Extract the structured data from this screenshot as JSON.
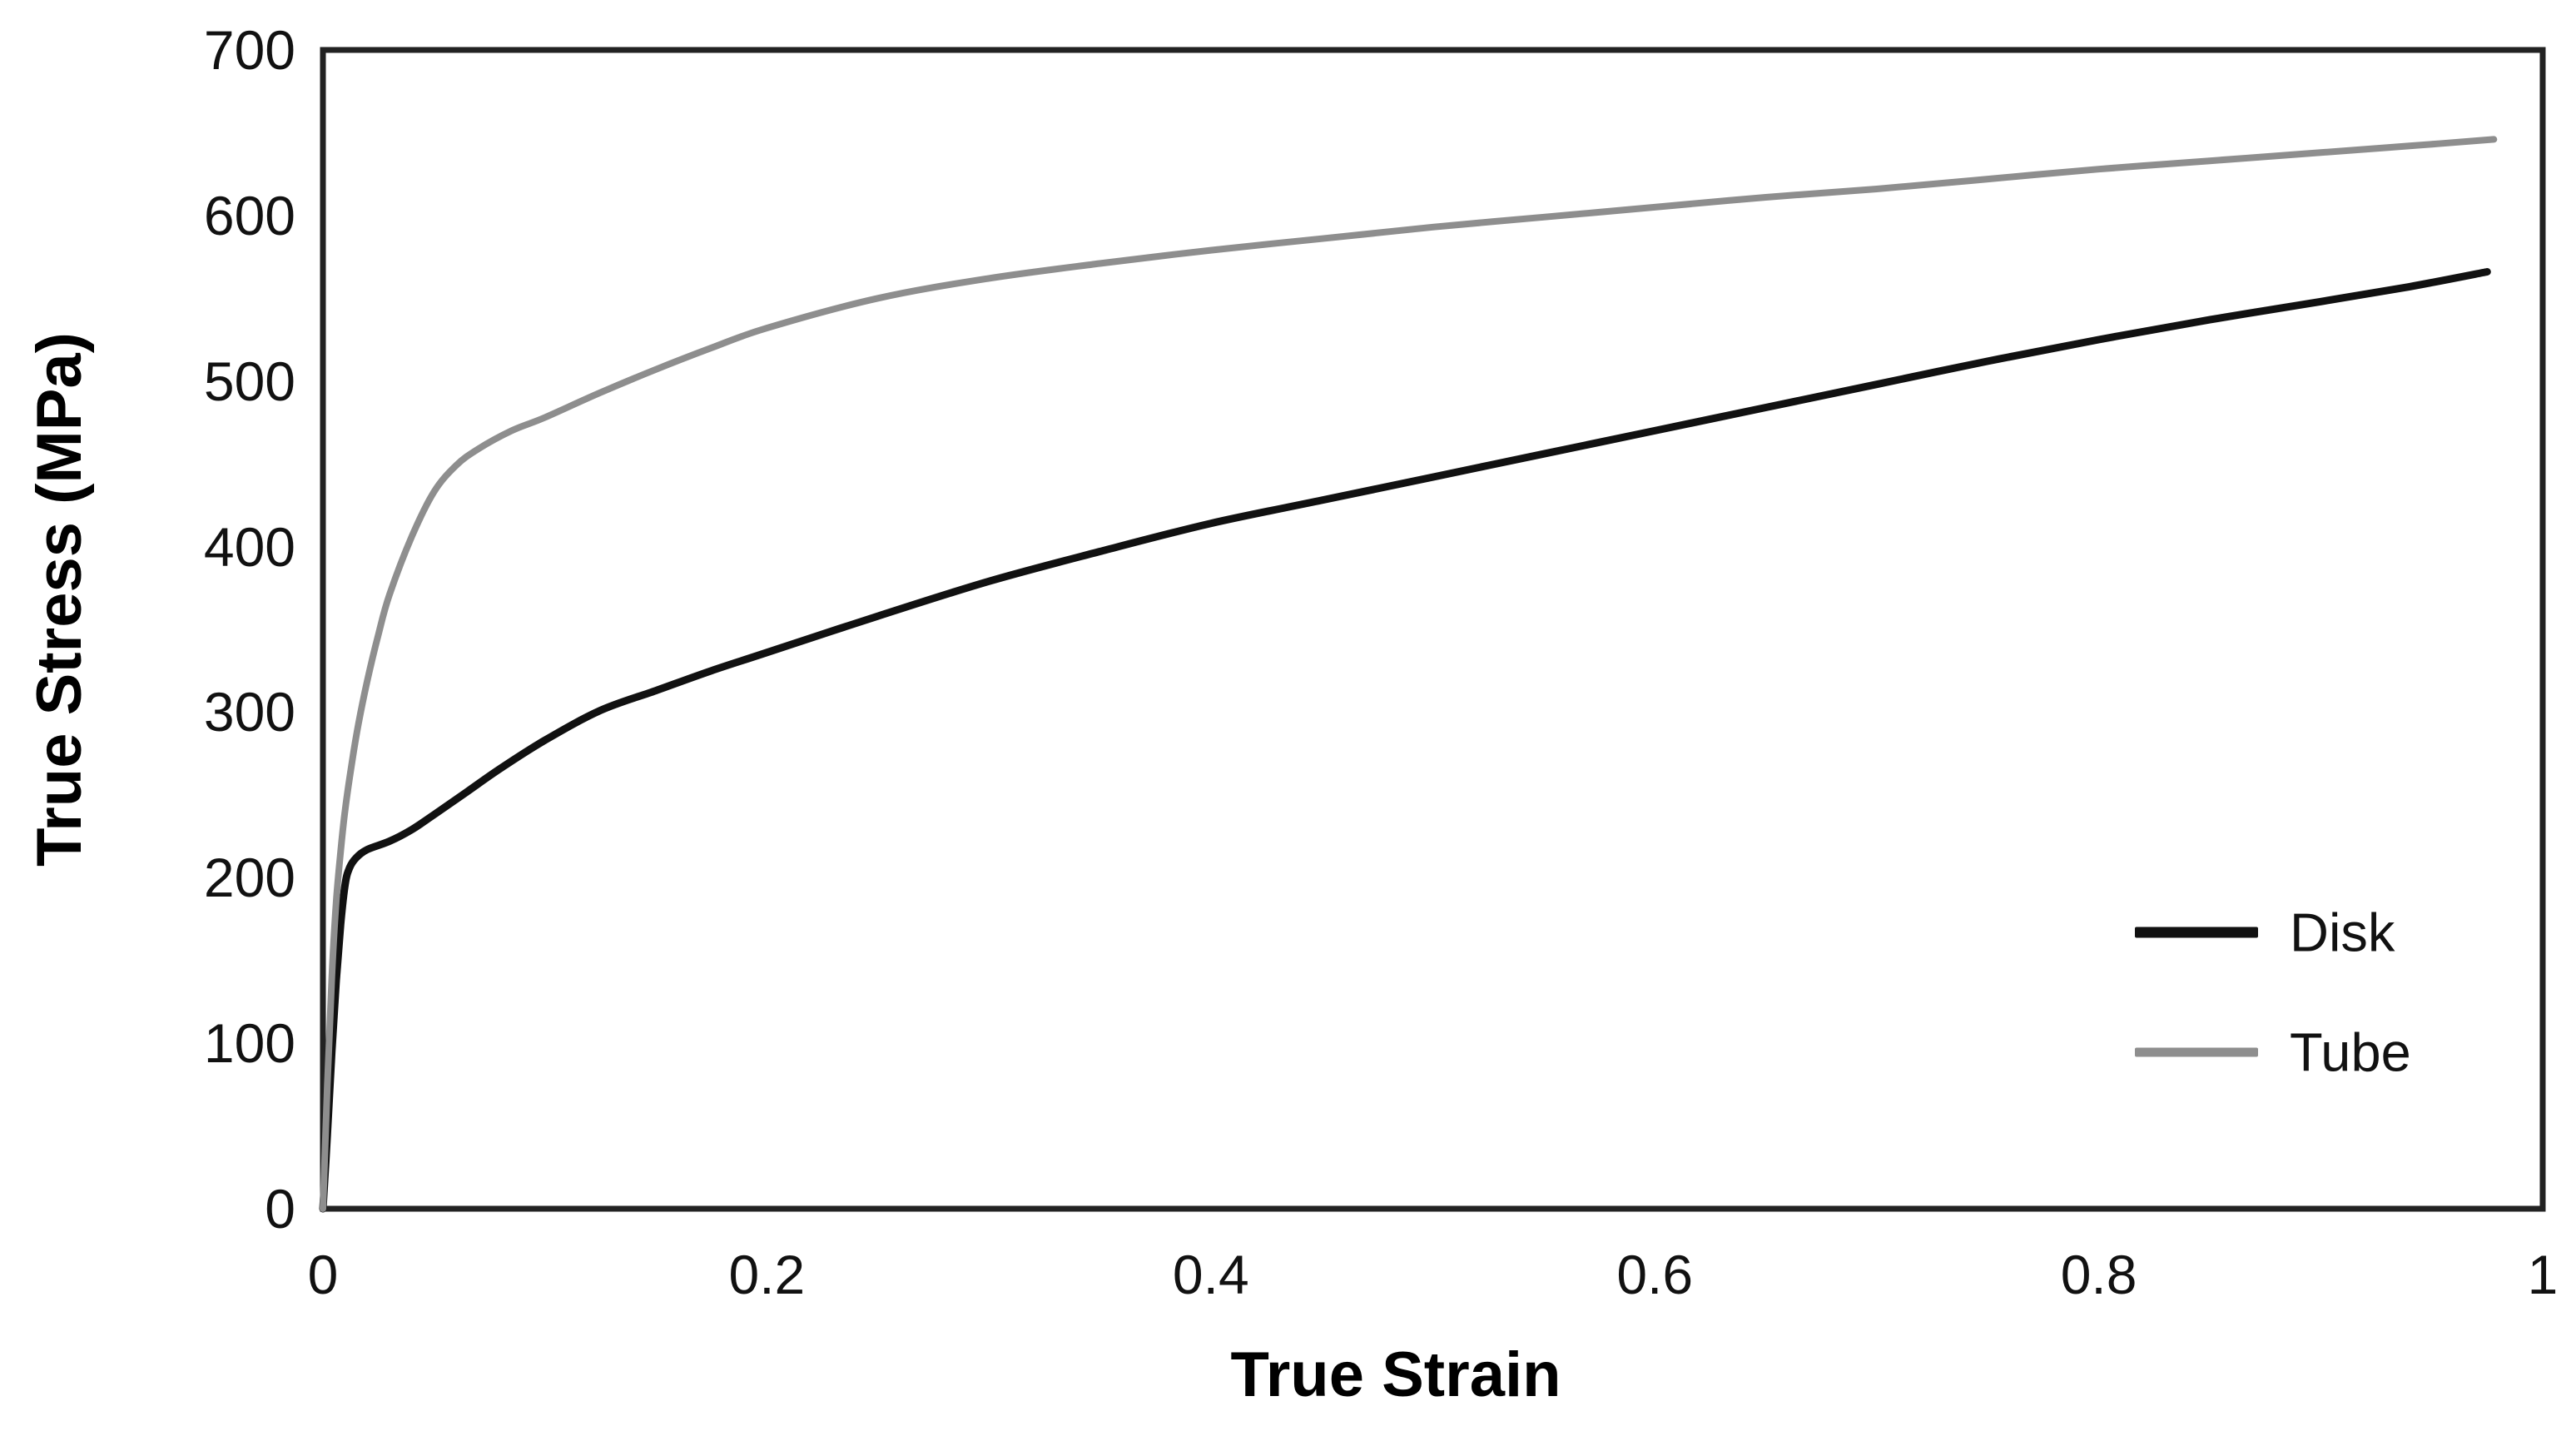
{
  "chart_data": {
    "type": "line",
    "title": "",
    "xlabel": "True Strain",
    "ylabel": "True Stress (MPa)",
    "xlim": [
      0,
      1
    ],
    "ylim": [
      0,
      700
    ],
    "grid": false,
    "frame": "full-box",
    "x_ticks": [
      0,
      0.2,
      0.4,
      0.6,
      0.8,
      1
    ],
    "x_tick_labels": [
      "0",
      "0.2",
      "0.4",
      "0.6",
      "0.8",
      "1"
    ],
    "y_ticks": [
      0,
      100,
      200,
      300,
      400,
      500,
      600,
      700
    ],
    "y_tick_labels": [
      "0",
      "100",
      "200",
      "300",
      "400",
      "500",
      "600",
      "700"
    ],
    "legend_position": "inside-right",
    "series": [
      {
        "name": "Disk",
        "color": "#111111",
        "stroke_width": 9,
        "points": [
          [
            0,
            0
          ],
          [
            0.002,
            45
          ],
          [
            0.004,
            95
          ],
          [
            0.006,
            138
          ],
          [
            0.008,
            172
          ],
          [
            0.01,
            196
          ],
          [
            0.012,
            206
          ],
          [
            0.015,
            212
          ],
          [
            0.02,
            217
          ],
          [
            0.03,
            222
          ],
          [
            0.04,
            229
          ],
          [
            0.05,
            238
          ],
          [
            0.065,
            252
          ],
          [
            0.08,
            266
          ],
          [
            0.1,
            283
          ],
          [
            0.125,
            301
          ],
          [
            0.15,
            313
          ],
          [
            0.175,
            325
          ],
          [
            0.2,
            336
          ],
          [
            0.25,
            358
          ],
          [
            0.3,
            379
          ],
          [
            0.35,
            397
          ],
          [
            0.4,
            414
          ],
          [
            0.45,
            428
          ],
          [
            0.5,
            442
          ],
          [
            0.55,
            456
          ],
          [
            0.6,
            470
          ],
          [
            0.65,
            484
          ],
          [
            0.7,
            498
          ],
          [
            0.75,
            512
          ],
          [
            0.8,
            525
          ],
          [
            0.85,
            537
          ],
          [
            0.9,
            548
          ],
          [
            0.94,
            557
          ],
          [
            0.975,
            566
          ]
        ]
      },
      {
        "name": "Tube",
        "color": "#8e8e8e",
        "stroke_width": 8,
        "points": [
          [
            0,
            0
          ],
          [
            0.002,
            75
          ],
          [
            0.004,
            140
          ],
          [
            0.006,
            186
          ],
          [
            0.008,
            216
          ],
          [
            0.01,
            241
          ],
          [
            0.013,
            269
          ],
          [
            0.016,
            293
          ],
          [
            0.02,
            319
          ],
          [
            0.025,
            347
          ],
          [
            0.03,
            371
          ],
          [
            0.04,
            406
          ],
          [
            0.05,
            433
          ],
          [
            0.06,
            449
          ],
          [
            0.07,
            459
          ],
          [
            0.085,
            470
          ],
          [
            0.1,
            478
          ],
          [
            0.125,
            493
          ],
          [
            0.15,
            507
          ],
          [
            0.175,
            520
          ],
          [
            0.2,
            532
          ],
          [
            0.25,
            550
          ],
          [
            0.3,
            562
          ],
          [
            0.35,
            571
          ],
          [
            0.4,
            579
          ],
          [
            0.45,
            586
          ],
          [
            0.5,
            593
          ],
          [
            0.55,
            599
          ],
          [
            0.6,
            605
          ],
          [
            0.65,
            611
          ],
          [
            0.7,
            616
          ],
          [
            0.75,
            622
          ],
          [
            0.8,
            628
          ],
          [
            0.85,
            633
          ],
          [
            0.9,
            638
          ],
          [
            0.94,
            642
          ],
          [
            0.978,
            646
          ]
        ]
      }
    ]
  },
  "colors": {
    "background": "#ffffff",
    "frame": "#222222",
    "text": "#111111"
  }
}
